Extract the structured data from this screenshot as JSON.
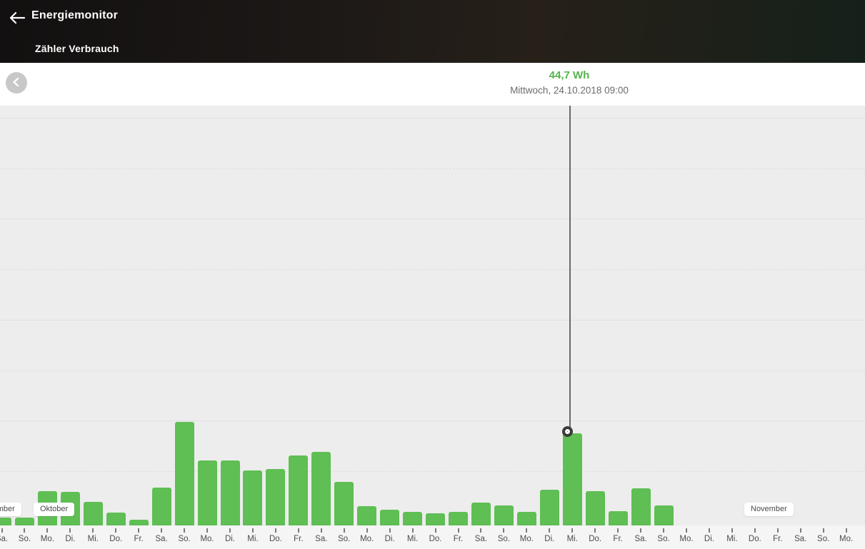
{
  "header": {
    "title": "Energiemonitor",
    "subtitle": "Zähler Verbrauch",
    "back_icon": "arrow-left",
    "background_color": "#1c1916"
  },
  "controls": {
    "prev_icon": "chevron-left"
  },
  "selection": {
    "value": "44,7 Wh",
    "date": "Mittwoch, 24.10.2018 09:00",
    "marker_icon": "target-dot"
  },
  "colors": {
    "bar": "#5fbe54",
    "selected_value_text": "#54b34b",
    "chart_background": "#ededed",
    "axis_background": "#f5f5f5",
    "cursor_line": "#696969",
    "header_text": "#ffffff"
  },
  "chart_data": {
    "type": "bar",
    "title": "Zähler Verbrauch",
    "unit": "Wh",
    "legend": "none",
    "grid": "horizontal gridlines, alternating solid and dashed, no y-axis labels visible",
    "x_tick_labels": [
      "Sa.",
      "So.",
      "Mo.",
      "Di.",
      "Mi.",
      "Do.",
      "Fr.",
      "Sa.",
      "So.",
      "Mo.",
      "Di.",
      "Mi.",
      "Do.",
      "Fr.",
      "Sa.",
      "So.",
      "Mo.",
      "Di.",
      "Mi.",
      "Do.",
      "Fr.",
      "Sa.",
      "So.",
      "Mo.",
      "Di.",
      "Mi.",
      "Do.",
      "Fr.",
      "Sa.",
      "So.",
      "Mo.",
      "Di.",
      "Mi.",
      "Do.",
      "Fr.",
      "Sa.",
      "So.",
      "Mo."
    ],
    "values": [
      3.8,
      3.8,
      16.5,
      16.1,
      11.3,
      6.1,
      2.7,
      18.2,
      50.1,
      31.3,
      31.3,
      26.5,
      27.2,
      34.0,
      35.5,
      21.0,
      9.2,
      7.5,
      6.4,
      5.8,
      6.6,
      11.2,
      9.5,
      6.6,
      17.1,
      44.7,
      16.7,
      6.9,
      17.9,
      9.8,
      null,
      null,
      null,
      null,
      null,
      null,
      null,
      null
    ],
    "selected_index": 25,
    "selected_value_label": "44,7 Wh",
    "selected_date_label": "Mittwoch, 24.10.2018 09:00",
    "month_labels": [
      "September",
      "Oktober",
      "November"
    ]
  }
}
